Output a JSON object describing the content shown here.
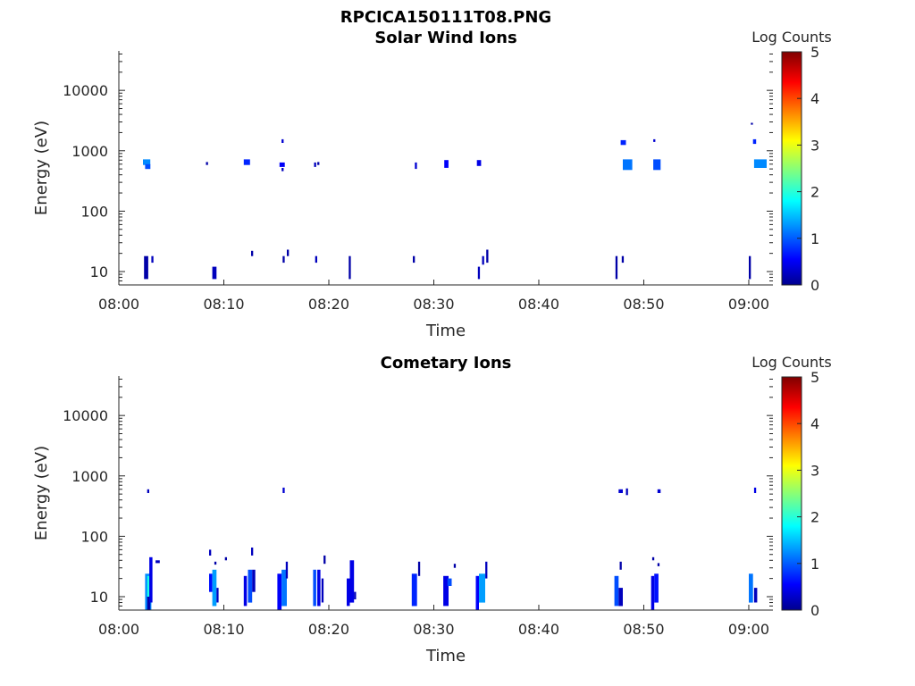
{
  "figure_title": "RPCICA150111T08.PNG",
  "chart_data": [
    {
      "type": "heatmap",
      "title": "Solar Wind Ions",
      "xlabel": "Time",
      "ylabel": "Energy (eV)",
      "xticks": [
        "08:00",
        "08:10",
        "08:20",
        "08:30",
        "08:40",
        "08:50",
        "09:00"
      ],
      "xlim_minutes": [
        0,
        62.3
      ],
      "yscale": "log",
      "ylim": [
        6,
        45000
      ],
      "yticks": [
        10,
        100,
        1000,
        10000
      ],
      "ytick_labels": [
        "10",
        "100",
        "1000",
        "10000"
      ],
      "colorbar": {
        "label": "Log Counts",
        "range": [
          0,
          5
        ],
        "ticks": [
          "0",
          "1",
          "2",
          "3",
          "4",
          "5"
        ],
        "colormap": "jet"
      },
      "cells": [
        [
          2.3,
          0.7,
          580,
          720,
          1.3
        ],
        [
          2.5,
          0.5,
          500,
          600,
          1.0
        ],
        [
          2.4,
          0.4,
          7.5,
          18,
          0.2
        ],
        [
          3.1,
          0.2,
          14,
          18,
          0.3
        ],
        [
          8.3,
          0.2,
          580,
          650,
          0.2
        ],
        [
          8.9,
          0.4,
          7.5,
          12,
          0.3
        ],
        [
          11.9,
          0.6,
          580,
          720,
          0.8
        ],
        [
          12.6,
          0.2,
          18,
          22,
          0.2
        ],
        [
          15.3,
          0.5,
          540,
          640,
          0.6
        ],
        [
          15.5,
          0.2,
          460,
          520,
          0.3
        ],
        [
          15.5,
          0.2,
          1350,
          1550,
          0.4
        ],
        [
          15.6,
          0.2,
          14,
          18,
          0.2
        ],
        [
          16.0,
          0.2,
          18,
          23,
          0.2
        ],
        [
          18.6,
          0.2,
          540,
          640,
          0.3
        ],
        [
          18.9,
          0.2,
          580,
          650,
          0.2
        ],
        [
          18.7,
          0.2,
          14,
          18,
          0.3
        ],
        [
          21.9,
          0.2,
          7.5,
          18,
          0.2
        ],
        [
          28.2,
          0.2,
          500,
          640,
          0.4
        ],
        [
          28.0,
          0.2,
          14,
          18,
          0.2
        ],
        [
          31.0,
          0.4,
          520,
          700,
          0.6
        ],
        [
          34.1,
          0.4,
          560,
          700,
          0.5
        ],
        [
          34.2,
          0.2,
          7.5,
          12,
          0.3
        ],
        [
          34.6,
          0.2,
          13,
          18,
          0.3
        ],
        [
          35.0,
          0.2,
          14,
          23,
          0.2
        ],
        [
          47.3,
          0.2,
          7.5,
          18,
          0.2
        ],
        [
          47.8,
          0.5,
          1250,
          1500,
          0.8
        ],
        [
          48.0,
          0.9,
          480,
          720,
          1.2
        ],
        [
          47.9,
          0.2,
          14,
          18,
          0.2
        ],
        [
          50.9,
          0.2,
          1400,
          1550,
          0.4
        ],
        [
          50.9,
          0.7,
          480,
          720,
          1.0
        ],
        [
          60.0,
          0.2,
          7.5,
          18,
          0.2
        ],
        [
          60.2,
          0.2,
          2700,
          2900,
          0.2
        ],
        [
          60.4,
          0.3,
          1300,
          1550,
          0.8
        ],
        [
          60.5,
          1.2,
          520,
          720,
          1.3
        ]
      ]
    },
    {
      "type": "heatmap",
      "title": "Cometary Ions",
      "xlabel": "Time",
      "ylabel": "Energy (eV)",
      "xticks": [
        "08:00",
        "08:10",
        "08:20",
        "08:30",
        "08:40",
        "08:50",
        "09:00"
      ],
      "xlim_minutes": [
        0,
        62.3
      ],
      "yscale": "log",
      "ylim": [
        6,
        45000
      ],
      "yticks": [
        10,
        100,
        1000,
        10000
      ],
      "ytick_labels": [
        "10",
        "100",
        "1000",
        "10000"
      ],
      "colorbar": {
        "label": "Log Counts",
        "range": [
          0,
          5
        ],
        "ticks": [
          "0",
          "1",
          "2",
          "3",
          "4",
          "5"
        ],
        "colormap": "jet"
      },
      "cells": [
        [
          2.5,
          0.6,
          6,
          24,
          1.3
        ],
        [
          2.7,
          0.3,
          10,
          22,
          2.0
        ],
        [
          2.7,
          0.3,
          6,
          10,
          0.2
        ],
        [
          2.9,
          0.3,
          8,
          45,
          0.5
        ],
        [
          3.5,
          0.4,
          36,
          40,
          0.3
        ],
        [
          2.7,
          0.2,
          520,
          600,
          0.3
        ],
        [
          8.6,
          0.3,
          12,
          24,
          0.7
        ],
        [
          8.9,
          0.4,
          7,
          28,
          1.4
        ],
        [
          9.3,
          0.2,
          8,
          14,
          0.3
        ],
        [
          8.6,
          0.2,
          48,
          60,
          0.3
        ],
        [
          9.1,
          0.2,
          34,
          38,
          0.2
        ],
        [
          10.1,
          0.2,
          40,
          45,
          0.2
        ],
        [
          11.9,
          0.3,
          7,
          22,
          0.5
        ],
        [
          12.3,
          0.4,
          8,
          28,
          1.0
        ],
        [
          12.7,
          0.3,
          12,
          28,
          0.3
        ],
        [
          12.6,
          0.2,
          48,
          65,
          0.3
        ],
        [
          15.1,
          0.4,
          6,
          24,
          0.6
        ],
        [
          15.5,
          0.5,
          7,
          28,
          1.2
        ],
        [
          15.9,
          0.2,
          20,
          38,
          0.3
        ],
        [
          15.6,
          0.2,
          520,
          640,
          0.4
        ],
        [
          18.5,
          0.3,
          7,
          28,
          1.0
        ],
        [
          18.9,
          0.3,
          7,
          28,
          0.5
        ],
        [
          19.3,
          0.2,
          8,
          20,
          0.3
        ],
        [
          19.5,
          0.2,
          35,
          48,
          0.2
        ],
        [
          21.7,
          0.3,
          7,
          20,
          0.5
        ],
        [
          22.0,
          0.4,
          8,
          40,
          0.5
        ],
        [
          22.4,
          0.2,
          9,
          12,
          0.3
        ],
        [
          27.9,
          0.5,
          7,
          24,
          0.8
        ],
        [
          28.5,
          0.2,
          22,
          38,
          0.2
        ],
        [
          30.9,
          0.5,
          7,
          22,
          0.5
        ],
        [
          31.3,
          0.4,
          15,
          20,
          1.0
        ],
        [
          31.9,
          0.2,
          30,
          35,
          0.2
        ],
        [
          34.0,
          0.3,
          6,
          22,
          0.6
        ],
        [
          34.3,
          0.6,
          8,
          24,
          1.4
        ],
        [
          34.9,
          0.2,
          20,
          38,
          0.3
        ],
        [
          47.2,
          0.4,
          7,
          22,
          1.0
        ],
        [
          47.6,
          0.4,
          7,
          14,
          0.3
        ],
        [
          47.7,
          0.2,
          28,
          38,
          0.2
        ],
        [
          47.6,
          0.4,
          520,
          600,
          0.4
        ],
        [
          48.3,
          0.2,
          480,
          620,
          0.3
        ],
        [
          50.7,
          0.3,
          6,
          22,
          0.5
        ],
        [
          51.0,
          0.4,
          8,
          24,
          0.7
        ],
        [
          50.8,
          0.2,
          40,
          45,
          0.2
        ],
        [
          51.3,
          0.2,
          32,
          36,
          0.2
        ],
        [
          51.3,
          0.3,
          520,
          600,
          0.4
        ],
        [
          60.0,
          0.4,
          8,
          24,
          1.2
        ],
        [
          60.5,
          0.3,
          8,
          14,
          0.3
        ],
        [
          60.5,
          0.2,
          520,
          640,
          0.5
        ]
      ]
    }
  ]
}
